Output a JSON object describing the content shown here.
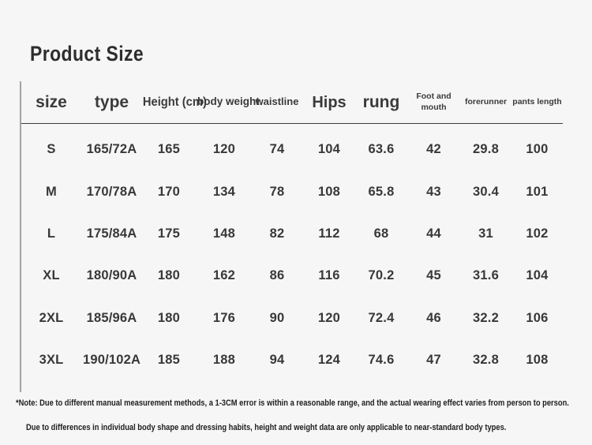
{
  "page": {
    "title": "Product Size",
    "background_color": "#f6f6f6",
    "text_color": "#333333",
    "rule_color": "#3b3b3b"
  },
  "table": {
    "columns": [
      "size",
      "type",
      "Height (cm)",
      "body weight",
      "waistline",
      "Hips",
      "rung",
      "Foot and mouth",
      "forerunner",
      "pants length"
    ],
    "rows": [
      [
        "S",
        "165/72A",
        "165",
        "120",
        "74",
        "104",
        "63.6",
        "42",
        "29.8",
        "100"
      ],
      [
        "M",
        "170/78A",
        "170",
        "134",
        "78",
        "108",
        "65.8",
        "43",
        "30.4",
        "101"
      ],
      [
        "L",
        "175/84A",
        "175",
        "148",
        "82",
        "112",
        "68",
        "44",
        "31",
        "102"
      ],
      [
        "XL",
        "180/90A",
        "180",
        "162",
        "86",
        "116",
        "70.2",
        "45",
        "31.6",
        "104"
      ],
      [
        "2XL",
        "185/96A",
        "180",
        "176",
        "90",
        "120",
        "72.4",
        "46",
        "32.2",
        "106"
      ],
      [
        "3XL",
        "190/102A",
        "185",
        "188",
        "94",
        "124",
        "74.6",
        "47",
        "32.8",
        "108"
      ]
    ]
  },
  "notes": {
    "line1": "*Note: Due to different manual measurement methods, a 1-3CM error is within a reasonable range, and the actual wearing effect varies from person to person.",
    "line2": "Due to differences in individual body shape and dressing habits, height and weight data are only applicable to near-standard body types."
  }
}
